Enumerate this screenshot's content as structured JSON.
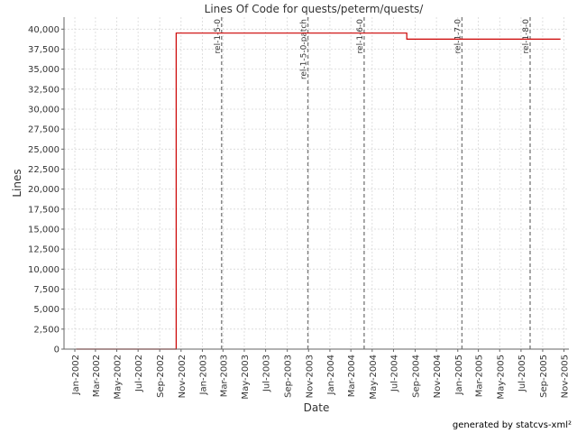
{
  "chart_data": {
    "type": "line",
    "title": "Lines Of Code for quests/peterm/quests/",
    "xlabel": "Date",
    "ylabel": "Lines",
    "xlim": [
      "2001-12-01",
      "2005-11-15"
    ],
    "ylim": [
      0,
      41500
    ],
    "y_ticks": [
      0,
      2500,
      5000,
      7500,
      10000,
      12500,
      15000,
      17500,
      20000,
      22500,
      25000,
      27500,
      30000,
      32500,
      35000,
      37500,
      40000
    ],
    "y_tick_labels": [
      "0",
      "2,500",
      "5,000",
      "7,500",
      "10,000",
      "12,500",
      "15,000",
      "17,500",
      "20,000",
      "22,500",
      "25,000",
      "27,500",
      "30,000",
      "32,500",
      "35,000",
      "37,500",
      "40,000"
    ],
    "x_ticks": [
      "2002-01-01",
      "2002-03-01",
      "2002-05-01",
      "2002-07-01",
      "2002-09-01",
      "2002-11-01",
      "2003-01-01",
      "2003-03-01",
      "2003-05-01",
      "2003-07-01",
      "2003-09-01",
      "2003-11-01",
      "2004-01-01",
      "2004-03-01",
      "2004-05-01",
      "2004-07-01",
      "2004-09-01",
      "2004-11-01",
      "2005-01-01",
      "2005-03-01",
      "2005-05-01",
      "2005-07-01",
      "2005-09-01",
      "2005-11-01"
    ],
    "x_tick_labels": [
      "Jan-2002",
      "Mar-2002",
      "May-2002",
      "Jul-2002",
      "Sep-2002",
      "Nov-2002",
      "Jan-2003",
      "Mar-2003",
      "May-2003",
      "Jul-2003",
      "Sep-2003",
      "Nov-2003",
      "Jan-2004",
      "Mar-2004",
      "May-2004",
      "Jul-2004",
      "Sep-2004",
      "Nov-2004",
      "Jan-2005",
      "Mar-2005",
      "May-2005",
      "Jul-2005",
      "Sep-2005",
      "Nov-2005"
    ],
    "grid": true,
    "series": [
      {
        "color": "#cc0000",
        "step": true,
        "points": [
          [
            "2002-01-05",
            0
          ],
          [
            "2002-10-18",
            0
          ],
          [
            "2002-10-18",
            39500
          ],
          [
            "2004-08-08",
            39500
          ],
          [
            "2004-08-08",
            38750
          ],
          [
            "2005-10-22",
            38750
          ]
        ]
      }
    ],
    "markers": [
      {
        "date": "2003-02-25",
        "label": "rel-1-5-0"
      },
      {
        "date": "2003-10-30",
        "label": "rel-1-5-0-patch"
      },
      {
        "date": "2004-04-08",
        "label": "rel-1-6-0"
      },
      {
        "date": "2005-01-13",
        "label": "rel-1-7-0"
      },
      {
        "date": "2005-07-27",
        "label": "rel-1-8-0"
      }
    ],
    "colors": {
      "grid": "#d8d8d8",
      "marker": "#808080",
      "axis": "#666666"
    }
  },
  "footer": "generated by statcvs-xml²"
}
